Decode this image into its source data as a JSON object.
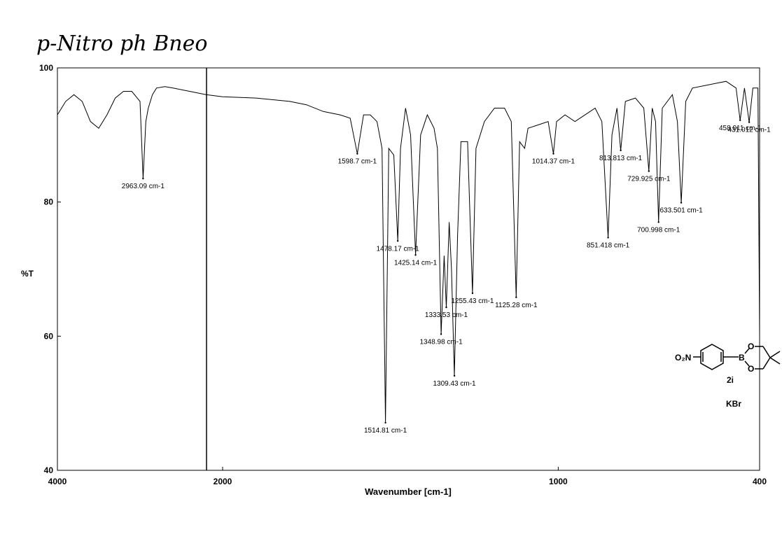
{
  "chart_data": {
    "type": "line",
    "title": "p-Nitro ph Bneo",
    "xlabel": "Wavenumber [cm-1]",
    "ylabel": "%T",
    "xlim": [
      4000,
      400
    ],
    "xticks": [
      4000,
      2000,
      1000,
      400
    ],
    "x_scale_break": 2000,
    "ylim": [
      40,
      100
    ],
    "yticks": [
      40,
      60,
      80,
      100
    ],
    "color": "#000000",
    "x": [
      4000,
      3900,
      3800,
      3700,
      3600,
      3500,
      3400,
      3300,
      3200,
      3100,
      3000,
      2963.09,
      2930,
      2900,
      2850,
      2800,
      2700,
      2600,
      2400,
      2200,
      2000,
      1900,
      1800,
      1750,
      1700,
      1650,
      1620,
      1598.7,
      1580,
      1560,
      1540,
      1525,
      1514.81,
      1505,
      1490,
      1478.17,
      1470,
      1455,
      1440,
      1425.14,
      1410,
      1390,
      1370,
      1360,
      1348.98,
      1340,
      1333.53,
      1325,
      1318,
      1309.43,
      1300,
      1290,
      1270,
      1255.43,
      1245,
      1220,
      1190,
      1160,
      1140,
      1125.28,
      1115,
      1100,
      1090,
      1060,
      1030,
      1014.37,
      1005,
      980,
      950,
      920,
      890,
      870,
      851.418,
      840,
      825,
      813.813,
      800,
      770,
      745,
      729.925,
      720,
      710,
      700.998,
      690,
      660,
      645,
      633.501,
      620,
      600,
      550,
      500,
      470,
      458.011,
      445,
      431.012,
      420,
      405,
      400
    ],
    "values": [
      93,
      95,
      96,
      95,
      92,
      91,
      93,
      95.5,
      96.5,
      96.5,
      95,
      83.5,
      92,
      94,
      96,
      97,
      97.2,
      97,
      96.5,
      96,
      95.7,
      95.5,
      95,
      94.5,
      93.5,
      93,
      92.5,
      87.2,
      93,
      93,
      92,
      88,
      47.1,
      88,
      87,
      74.2,
      88,
      94,
      90,
      72.1,
      90,
      93,
      91,
      88,
      60.3,
      72,
      64.3,
      77,
      70,
      54.1,
      75,
      89,
      89,
      66.4,
      88,
      92,
      94,
      94,
      92,
      65.8,
      89,
      88,
      91,
      91.5,
      92,
      87.2,
      92,
      93,
      92,
      93,
      94,
      92,
      74.7,
      90,
      94,
      87.7,
      95,
      95.5,
      94,
      84.6,
      94,
      92,
      77.0,
      94,
      96,
      92,
      79.9,
      95,
      97,
      97.5,
      98,
      97,
      92.2,
      97,
      91.9,
      97,
      97,
      60
    ],
    "peaks": [
      {
        "label": "2963.09 cm-1",
        "x": 2963.09,
        "y": 83.5
      },
      {
        "label": "1598.7 cm-1",
        "x": 1598.7,
        "y": 87.2
      },
      {
        "label": "1514.81 cm-1",
        "x": 1514.81,
        "y": 47.1
      },
      {
        "label": "1478.17 cm-1",
        "x": 1478.17,
        "y": 74.2
      },
      {
        "label": "1425.14 cm-1",
        "x": 1425.14,
        "y": 72.1
      },
      {
        "label": "1348.98 cm-1",
        "x": 1348.98,
        "y": 60.3
      },
      {
        "label": "1333.53 cm-1",
        "x": 1333.53,
        "y": 64.3
      },
      {
        "label": "1309.43 cm-1",
        "x": 1309.43,
        "y": 54.1
      },
      {
        "label": "1255.43 cm-1",
        "x": 1255.43,
        "y": 66.4
      },
      {
        "label": "1125.28 cm-1",
        "x": 1125.28,
        "y": 65.8
      },
      {
        "label": "1014.37 cm-1",
        "x": 1014.37,
        "y": 87.2
      },
      {
        "label": "851.418 cm-1",
        "x": 851.418,
        "y": 74.7
      },
      {
        "label": "813.813 cm-1",
        "x": 813.813,
        "y": 87.7
      },
      {
        "label": "729.925 cm-1",
        "x": 729.925,
        "y": 84.6
      },
      {
        "label": "700.998 cm-1",
        "x": 700.998,
        "y": 77.0
      },
      {
        "label": "633.501 cm-1",
        "x": 633.501,
        "y": 79.9
      },
      {
        "label": "458.011 cm-1",
        "x": 458.011,
        "y": 92.2
      },
      {
        "label": "431.012 cm-1",
        "x": 431.012,
        "y": 91.9
      }
    ],
    "structure": {
      "nitro": "O₂N",
      "boron": "B",
      "oxygen_top": "O",
      "oxygen_bottom": "O",
      "compound": "2i",
      "medium": "KBr"
    }
  }
}
